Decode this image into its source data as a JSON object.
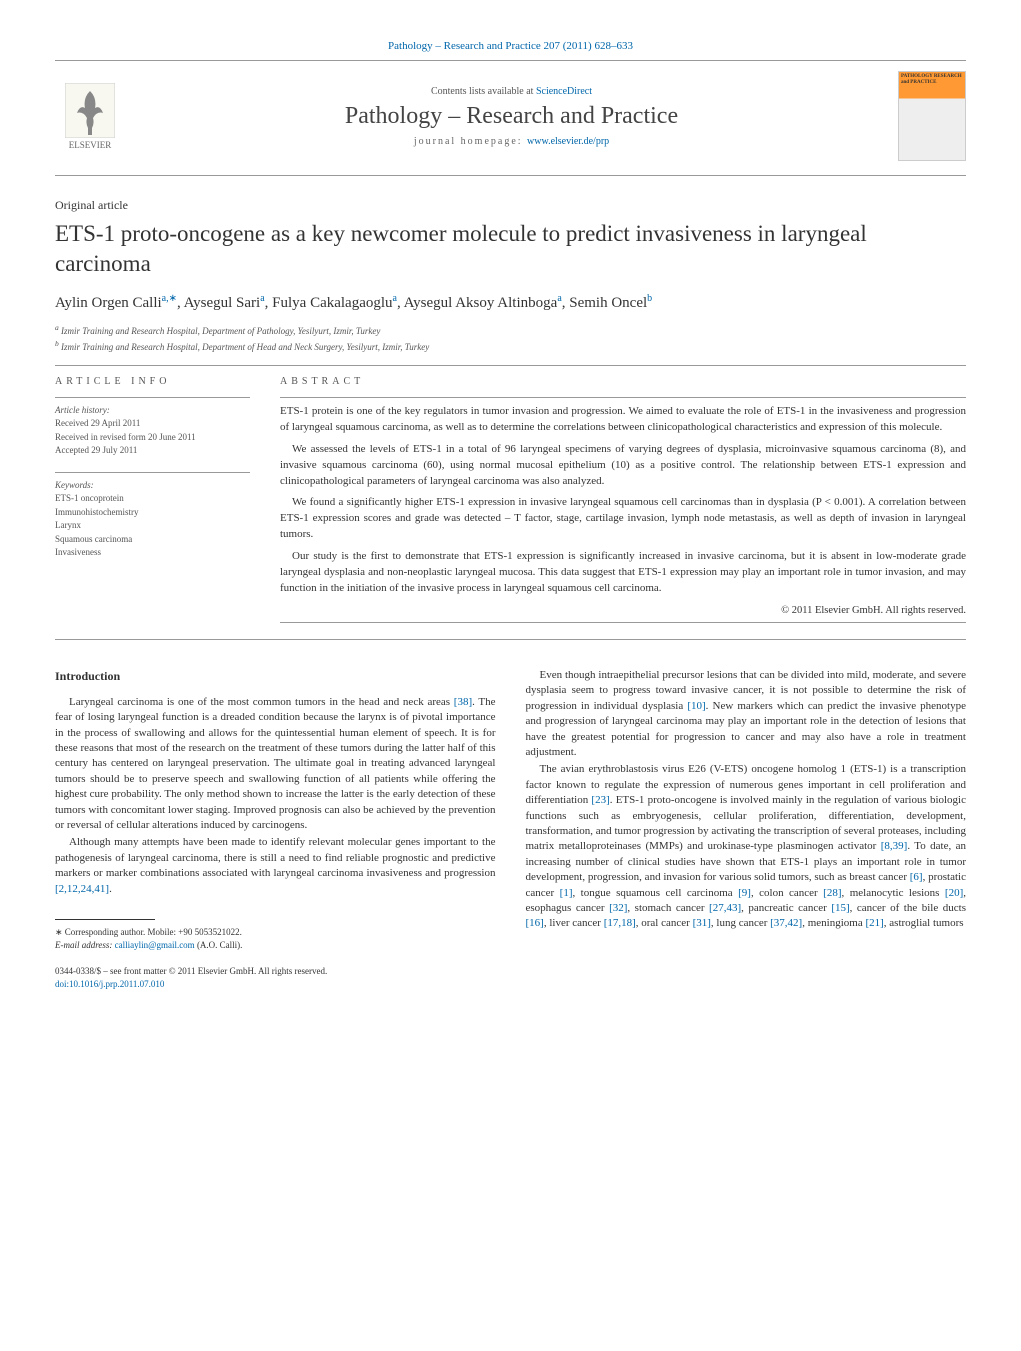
{
  "journal_ref": "Pathology – Research and Practice 207 (2011) 628–633",
  "header": {
    "publisher": "ELSEVIER",
    "contents_prefix": "Contents lists available at ",
    "contents_link": "ScienceDirect",
    "journal_name": "Pathology – Research and Practice",
    "homepage_prefix": "journal homepage: ",
    "homepage_url": "www.elsevier.de/prp",
    "cover_title": "PATHOLOGY RESEARCH and PRACTICE"
  },
  "article": {
    "type": "Original article",
    "title": "ETS-1 proto-oncogene as a key newcomer molecule to predict invasiveness in laryngeal carcinoma",
    "authors_html": "Aylin Orgen Calli<sup>a,∗</sup>, Aysegul Sari<sup>a</sup>, Fulya Cakalagaoglu<sup>a</sup>, Aysegul Aksoy Altinboga<sup>a</sup>, Semih Oncel<sup>b</sup>",
    "affiliations": {
      "a": "Izmir Training and Research Hospital, Department of Pathology, Yesilyurt, Izmir, Turkey",
      "b": "Izmir Training and Research Hospital, Department of Head and Neck Surgery, Yesilyurt, Izmir, Turkey"
    }
  },
  "info": {
    "label": "article info",
    "history_label": "Article history:",
    "received": "Received 29 April 2011",
    "revised": "Received in revised form 20 June 2011",
    "accepted": "Accepted 29 July 2011",
    "keywords_label": "Keywords:",
    "keywords": [
      "ETS-1 oncoprotein",
      "Immunohistochemistry",
      "Larynx",
      "Squamous carcinoma",
      "Invasiveness"
    ]
  },
  "abstract": {
    "label": "abstract",
    "paragraphs": [
      "ETS-1 protein is one of the key regulators in tumor invasion and progression. We aimed to evaluate the role of ETS-1 in the invasiveness and progression of laryngeal squamous carcinoma, as well as to determine the correlations between clinicopathological characteristics and expression of this molecule.",
      "We assessed the levels of ETS-1 in a total of 96 laryngeal specimens of varying degrees of dysplasia, microinvasive squamous carcinoma (8), and invasive squamous carcinoma (60), using normal mucosal epithelium (10) as a positive control. The relationship between ETS-1 expression and clinicopathological parameters of laryngeal carcinoma was also analyzed.",
      "We found a significantly higher ETS-1 expression in invasive laryngeal squamous cell carcinomas than in dysplasia (P < 0.001). A correlation between ETS-1 expression scores and grade was detected – T factor, stage, cartilage invasion, lymph node metastasis, as well as depth of invasion in laryngeal tumors.",
      "Our study is the first to demonstrate that ETS-1 expression is significantly increased in invasive carcinoma, but it is absent in low-moderate grade laryngeal dysplasia and non-neoplastic laryngeal mucosa. This data suggest that ETS-1 expression may play an important role in tumor invasion, and may function in the initiation of the invasive process in laryngeal squamous cell carcinoma."
    ],
    "copyright": "© 2011 Elsevier GmbH. All rights reserved."
  },
  "body": {
    "intro_heading": "Introduction",
    "left_paragraphs": [
      "Laryngeal carcinoma is one of the most common tumors in the head and neck areas <span class=\"ref-link\">[38]</span>. The fear of losing laryngeal function is a dreaded condition because the larynx is of pivotal importance in the process of swallowing and allows for the quintessential human element of speech. It is for these reasons that most of the research on the treatment of these tumors during the latter half of this century has centered on laryngeal preservation. The ultimate goal in treating advanced laryngeal tumors should be to preserve speech and swallowing function of all patients while offering the highest cure probability. The only method shown to increase the latter is the early detection of these tumors with concomitant lower staging. Improved prognosis can also be achieved by the prevention or reversal of cellular alterations induced by carcinogens.",
      "Although many attempts have been made to identify relevant molecular genes important to the pathogenesis of laryngeal carcinoma, there is still a need to find reliable prognostic and predictive markers or marker combinations associated with laryngeal carcinoma invasiveness and progression <span class=\"ref-link\">[2,12,24,41]</span>."
    ],
    "right_paragraphs": [
      "Even though intraepithelial precursor lesions that can be divided into mild, moderate, and severe dysplasia seem to progress toward invasive cancer, it is not possible to determine the risk of progression in individual dysplasia <span class=\"ref-link\">[10]</span>. New markers which can predict the invasive phenotype and progression of laryngeal carcinoma may play an important role in the detection of lesions that have the greatest potential for progression to cancer and may also have a role in treatment adjustment.",
      "The avian erythroblastosis virus E26 (V-ETS) oncogene homolog 1 (ETS-1) is a transcription factor known to regulate the expression of numerous genes important in cell proliferation and differentiation <span class=\"ref-link\">[23]</span>. ETS-1 proto-oncogene is involved mainly in the regulation of various biologic functions such as embryogenesis, cellular proliferation, differentiation, development, transformation, and tumor progression by activating the transcription of several proteases, including matrix metalloproteinases (MMPs) and urokinase-type plasminogen activator <span class=\"ref-link\">[8,39]</span>. To date, an increasing number of clinical studies have shown that ETS-1 plays an important role in tumor development, progression, and invasion for various solid tumors, such as breast cancer <span class=\"ref-link\">[6]</span>, prostatic cancer <span class=\"ref-link\">[1]</span>, tongue squamous cell carcinoma <span class=\"ref-link\">[9]</span>, colon cancer <span class=\"ref-link\">[28]</span>, melanocytic lesions <span class=\"ref-link\">[20]</span>, esophagus cancer <span class=\"ref-link\">[32]</span>, stomach cancer <span class=\"ref-link\">[27,43]</span>, pancreatic cancer <span class=\"ref-link\">[15]</span>, cancer of the bile ducts <span class=\"ref-link\">[16]</span>, liver cancer <span class=\"ref-link\">[17,18]</span>, oral cancer <span class=\"ref-link\">[31]</span>, lung cancer <span class=\"ref-link\">[37,42]</span>, meningioma <span class=\"ref-link\">[21]</span>, astroglial tumors"
    ]
  },
  "footer": {
    "corr_label": "∗ Corresponding author. Mobile: +90 5053521022.",
    "email_label": "E-mail address:",
    "email": "calliaylin@gmail.com",
    "email_suffix": "(A.O. Calli).",
    "issn_line": "0344-0338/$ – see front matter © 2011 Elsevier GmbH. All rights reserved.",
    "doi": "doi:10.1016/j.prp.2011.07.010"
  },
  "colors": {
    "link": "#0066aa",
    "text": "#333333",
    "rule": "#999999",
    "cover_accent": "#ff9933"
  }
}
